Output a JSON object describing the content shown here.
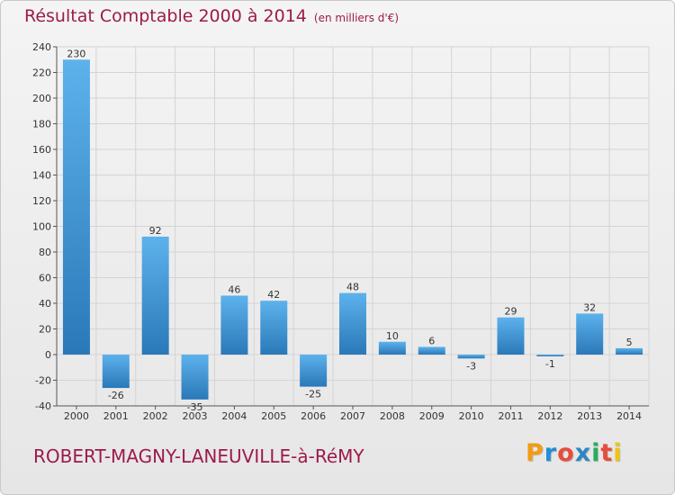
{
  "title": "Résultat Comptable 2000 à 2014",
  "title_unit": "(en milliers d'€)",
  "commune": "ROBERT-MAGNY-LANEUVILLE-à-RéMY",
  "brand": {
    "letters": [
      "P",
      "r",
      "o",
      "x",
      "i",
      "t",
      "i"
    ],
    "colors": [
      "#f39c12",
      "#1f8fd6",
      "#e74c3c",
      "#2e86c1",
      "#27ae60",
      "#e74c3c",
      "#f1c40f"
    ]
  },
  "colors": {
    "bar_light": "#5db2ec",
    "bar_dark": "#2a78b8",
    "title": "#9d1a4c",
    "grid": "#d4d4d4"
  },
  "chart_data": {
    "type": "bar",
    "categories": [
      "2000",
      "2001",
      "2002",
      "2003",
      "2004",
      "2005",
      "2006",
      "2007",
      "2008",
      "2009",
      "2010",
      "2011",
      "2012",
      "2013",
      "2014"
    ],
    "values": [
      230,
      -26,
      92,
      -35,
      46,
      42,
      -25,
      48,
      10,
      6,
      -3,
      29,
      -1,
      32,
      5
    ],
    "ylim": [
      -40,
      240
    ],
    "yticks": [
      -40,
      -20,
      0,
      20,
      40,
      60,
      80,
      100,
      120,
      140,
      160,
      180,
      200,
      220,
      240
    ],
    "grid": true
  }
}
